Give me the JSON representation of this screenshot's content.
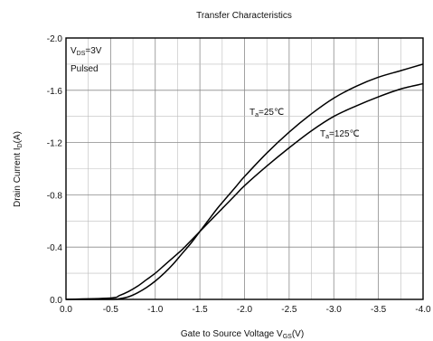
{
  "chart_data": {
    "type": "line",
    "title": "Transfer Characteristics",
    "xlabel": {
      "main": "Gate to Source Voltage V",
      "sub": "GS",
      "unit": "(V)"
    },
    "ylabel": {
      "main": "Drain Current I",
      "sub": "D",
      "unit": "(A)"
    },
    "xlim": [
      0.0,
      -4.0
    ],
    "ylim": [
      0.0,
      -2.0
    ],
    "x_ticks": [
      "0.0",
      "-0.5",
      "-1.0",
      "-1.5",
      "-2.0",
      "-2.5",
      "-3.0",
      "-3.5",
      "-4.0"
    ],
    "y_ticks": [
      "0.0",
      "-0.4",
      "-0.8",
      "-1.2",
      "-1.6",
      "-2.0"
    ],
    "grid": true,
    "conditions": [
      {
        "main": "V",
        "sub": "DS",
        "tail": "=3V"
      },
      {
        "main": "Pulsed",
        "sub": "",
        "tail": ""
      }
    ],
    "series": [
      {
        "name": {
          "main": "T",
          "sub": "a",
          "tail": "=25℃"
        },
        "x": [
          0.0,
          -0.5,
          -0.6,
          -0.7,
          -0.8,
          -0.9,
          -1.0,
          -1.1,
          -1.2,
          -1.3,
          -1.4,
          -1.5,
          -1.6,
          -1.7,
          -1.8,
          -1.9,
          -2.0,
          -2.25,
          -2.5,
          -2.75,
          -3.0,
          -3.25,
          -3.5,
          -3.75,
          -4.0
        ],
        "y": [
          0.0,
          0.0,
          -0.005,
          -0.02,
          -0.05,
          -0.09,
          -0.14,
          -0.2,
          -0.27,
          -0.35,
          -0.43,
          -0.52,
          -0.61,
          -0.7,
          -0.78,
          -0.86,
          -0.94,
          -1.12,
          -1.28,
          -1.42,
          -1.54,
          -1.63,
          -1.7,
          -1.75,
          -1.8
        ]
      },
      {
        "name": {
          "main": "T",
          "sub": "a",
          "tail": "=125℃"
        },
        "x": [
          0.0,
          -0.5,
          -0.6,
          -0.7,
          -0.8,
          -0.9,
          -1.0,
          -1.1,
          -1.2,
          -1.3,
          -1.4,
          -1.5,
          -1.6,
          -1.7,
          -1.8,
          -1.9,
          -2.0,
          -2.25,
          -2.5,
          -2.75,
          -3.0,
          -3.25,
          -3.5,
          -3.75,
          -4.0
        ],
        "y": [
          0.0,
          -0.01,
          -0.03,
          -0.06,
          -0.1,
          -0.15,
          -0.2,
          -0.26,
          -0.32,
          -0.38,
          -0.45,
          -0.52,
          -0.59,
          -0.66,
          -0.73,
          -0.8,
          -0.87,
          -1.02,
          -1.16,
          -1.29,
          -1.4,
          -1.48,
          -1.55,
          -1.61,
          -1.65
        ]
      }
    ]
  }
}
